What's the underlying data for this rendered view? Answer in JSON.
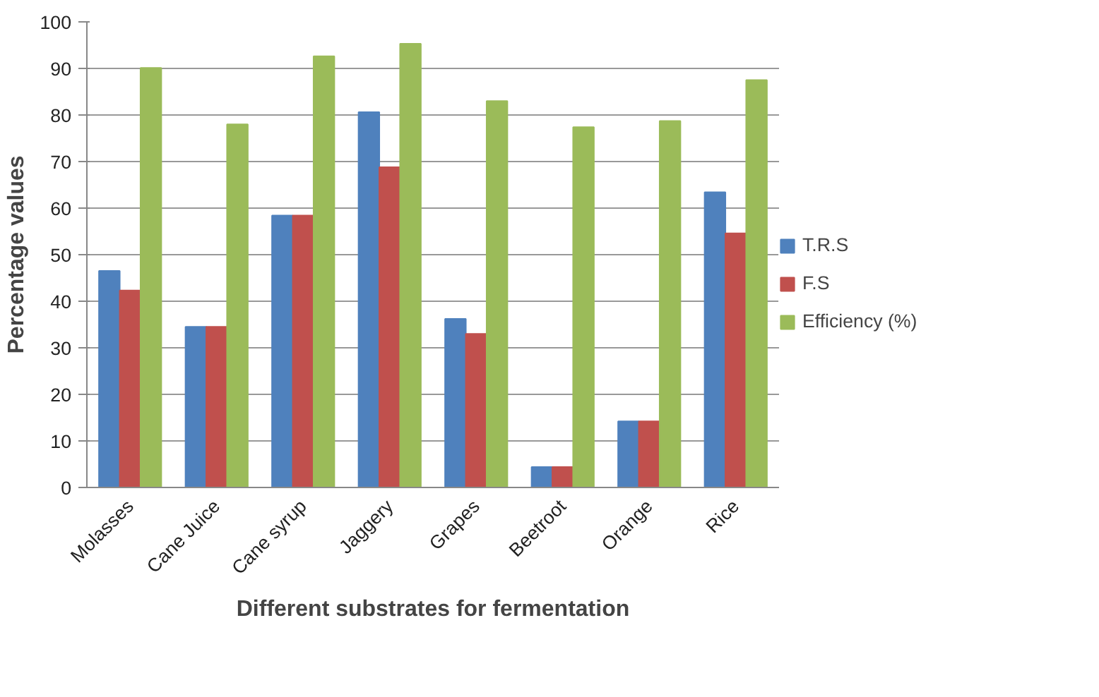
{
  "chart_data": {
    "type": "bar",
    "xlabel": "Different substrates for fermentation",
    "ylabel": "Percentage values",
    "categories": [
      "Molasses",
      "Cane Juice",
      "Cane syrup",
      "Jaggery",
      "Grapes",
      "Beetroot",
      "Orange",
      "Rice"
    ],
    "series": [
      {
        "name": "T.R.S",
        "color": "#4f81bd",
        "values": [
          46.5,
          34.5,
          58.4,
          80.6,
          36.2,
          4.4,
          14.2,
          63.4
        ]
      },
      {
        "name": "F.S",
        "color": "#c0504d",
        "values": [
          42.3,
          34.5,
          58.4,
          68.8,
          33.0,
          4.4,
          14.2,
          54.6
        ]
      },
      {
        "name": "Efficiency (%)",
        "color": "#9bbb59",
        "values": [
          90.1,
          78.0,
          92.6,
          95.3,
          83.0,
          77.4,
          78.7,
          87.5
        ]
      }
    ],
    "ylim": [
      0,
      100
    ],
    "yticks": [
      0,
      10,
      20,
      30,
      40,
      50,
      60,
      70,
      80,
      90,
      100
    ],
    "grid": "y",
    "legend": "right"
  }
}
